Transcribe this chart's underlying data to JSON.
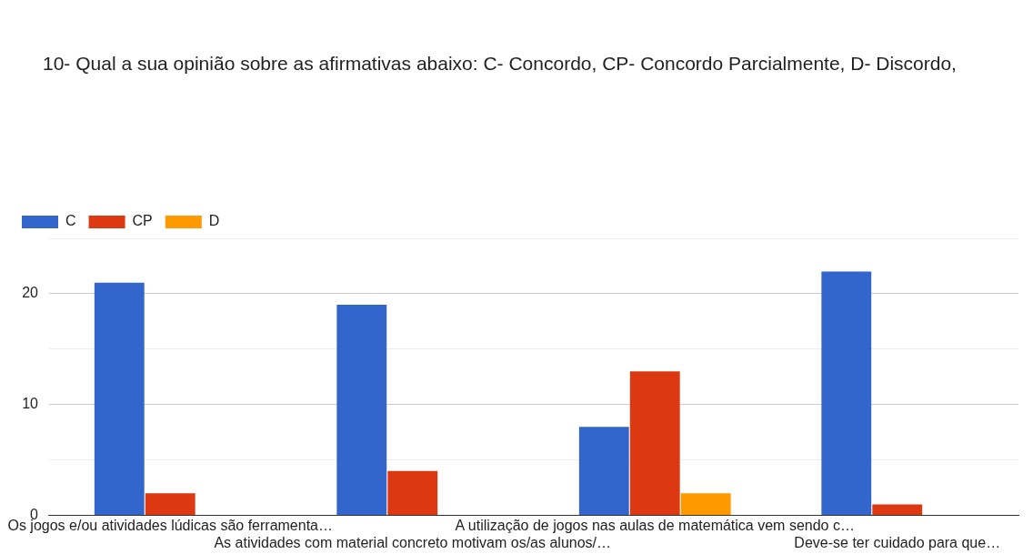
{
  "chart_data": {
    "type": "bar",
    "title": "10- Qual a sua opinião sobre as afirmativas abaixo:  C- Concordo, CP- Concordo Parcialmente, D- Discordo,",
    "categories": [
      "Os jogos e/ou atividades lúdicas são ferramenta…",
      "As atividades com material concreto motivam os/as alunos/…",
      "A utilização de jogos nas aulas de matemática vem sendo c…",
      "Deve-se ter cuidado para que…"
    ],
    "series": [
      {
        "name": "C",
        "color": "#3366cc",
        "values": [
          21,
          19,
          8,
          22
        ]
      },
      {
        "name": "CP",
        "color": "#dc3912",
        "values": [
          2,
          4,
          13,
          1
        ]
      },
      {
        "name": "D",
        "color": "#ff9900",
        "values": [
          0,
          0,
          2,
          0
        ]
      }
    ],
    "ylim": [
      0,
      25
    ],
    "yticks": [
      0,
      {
        "value": 5,
        "label": null
      },
      10,
      {
        "value": 15,
        "label": null
      },
      20,
      {
        "value": 25,
        "label": null
      }
    ],
    "grid": "y",
    "legend": "top left"
  }
}
